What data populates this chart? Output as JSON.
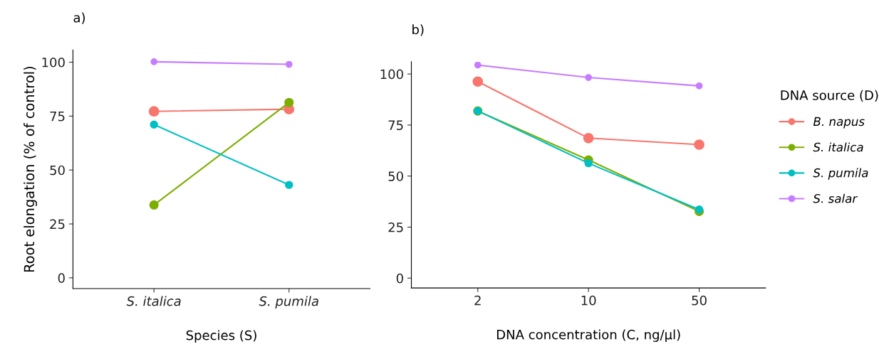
{
  "chart_data": [
    {
      "type": "line",
      "title": "a)",
      "xlabel": "Species (S)",
      "ylabel": "Root elongation (% of control)",
      "categories": [
        "S. italica",
        "S. pumila"
      ],
      "ylim": [
        -5,
        105.7
      ],
      "yticks": [
        0,
        25,
        50,
        75,
        100
      ],
      "marker": "circle",
      "grid": false,
      "legend": false,
      "series": [
        {
          "color": "#f8766d",
          "values": [
            77.2,
            78.2
          ]
        },
        {
          "color": "#7cae00",
          "values": [
            33.8,
            81.3
          ]
        },
        {
          "color": "#00bfc4",
          "values": [
            71.1,
            43.1
          ]
        },
        {
          "color": "#c77cff",
          "values": [
            100.2,
            99
          ]
        }
      ]
    },
    {
      "type": "line",
      "title": "b)",
      "xlabel": "DNA concentration (C, ng/µl)",
      "legend_title": "DNA source (D)",
      "categories": [
        "2",
        "10",
        "50"
      ],
      "ylim": [
        -4.8,
        106
      ],
      "yticks": [
        0,
        25,
        50,
        75,
        100
      ],
      "marker": "circle",
      "grid": false,
      "legend": "right",
      "series": [
        {
          "name": "B. napus",
          "color": "#f8766d",
          "values": [
            96.3,
            68.6,
            65.4
          ]
        },
        {
          "name": "S. italica",
          "color": "#7cae00",
          "values": [
            81.9,
            57.9,
            32.7
          ]
        },
        {
          "name": "S. pumila",
          "color": "#00bfc4",
          "values": [
            81.9,
            56.3,
            33.6
          ]
        },
        {
          "name": "S. salar",
          "color": "#c77cff",
          "values": [
            104.4,
            98.3,
            94.2
          ]
        }
      ]
    }
  ]
}
